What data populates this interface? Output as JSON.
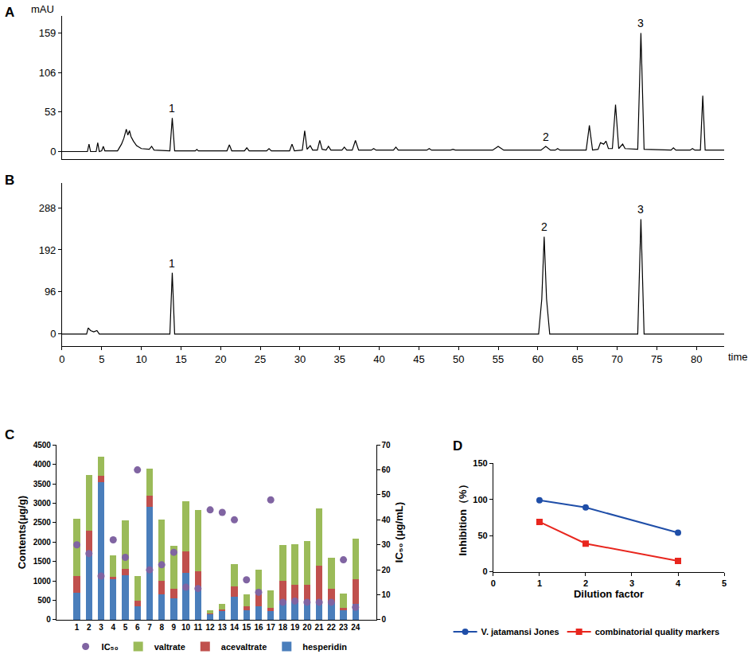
{
  "chart_data": [
    {
      "type": "line",
      "title": "A",
      "y_label": "mAU",
      "color": "#000000",
      "tick_labels": "y",
      "x": [
        0,
        3.2,
        3.4,
        3.6,
        4.3,
        4.5,
        4.7,
        5.0,
        5.2,
        5.4,
        7.0,
        7.5,
        7.8,
        8.1,
        8.3,
        8.5,
        8.7,
        9.0,
        9.4,
        10.0,
        11.0,
        11.3,
        11.6,
        13.6,
        13.9,
        14.2,
        16.8,
        17.0,
        17.2,
        20.8,
        21.1,
        21.4,
        23.0,
        23.3,
        23.6,
        25.8,
        26.1,
        26.4,
        28.7,
        29.0,
        29.3,
        30.3,
        30.6,
        30.9,
        31.3,
        31.6,
        32.2,
        32.5,
        32.8,
        33.3,
        33.6,
        33.9,
        35.3,
        35.6,
        35.9,
        36.6,
        37.0,
        37.4,
        39.0,
        39.3,
        39.6,
        41.8,
        42.1,
        42.4,
        46.0,
        46.3,
        46.6,
        49.0,
        49.3,
        49.6,
        54.3,
        55.0,
        55.7,
        60.4,
        61.0,
        61.6,
        62.2,
        62.5,
        62.8,
        66.1,
        66.5,
        66.9,
        67.6,
        67.9,
        68.3,
        68.6,
        68.9,
        69.4,
        69.8,
        70.2,
        70.7,
        71.0,
        72.6,
        73.0,
        73.4,
        76.8,
        77.1,
        77.4,
        79.2,
        79.5,
        79.8,
        80.5,
        80.8,
        81.1,
        83.5
      ],
      "values": [
        0,
        0,
        10,
        0,
        0,
        12,
        0,
        1,
        7,
        1,
        1,
        10,
        18,
        30,
        22,
        28,
        20,
        14,
        8,
        4,
        3,
        7,
        2,
        1,
        45,
        1,
        1,
        3,
        1,
        1,
        9,
        1,
        1,
        5,
        1,
        1,
        4,
        1,
        1,
        10,
        1,
        2,
        28,
        3,
        8,
        2,
        2,
        15,
        3,
        2,
        7,
        2,
        2,
        6,
        2,
        2,
        15,
        2,
        2,
        4,
        2,
        2,
        6,
        2,
        2,
        4,
        2,
        2,
        3,
        2,
        2,
        7,
        2,
        2,
        7,
        2,
        2,
        4,
        2,
        2,
        35,
        2,
        3,
        12,
        10,
        14,
        4,
        4,
        63,
        4,
        10,
        4,
        3,
        159,
        3,
        2,
        5,
        2,
        2,
        4,
        2,
        2,
        75,
        2,
        2
      ],
      "xlim": [
        0,
        83.5
      ],
      "ylim": [
        -10,
        182
      ],
      "yticks": [
        0,
        53,
        106,
        159
      ],
      "annotations": [
        {
          "text": "1",
          "x": 13.9,
          "y": 45
        },
        {
          "text": "2",
          "x": 61.0,
          "y": 7
        },
        {
          "text": "3",
          "x": 73.0,
          "y": 159
        }
      ]
    },
    {
      "type": "line",
      "title": "B",
      "x_label": "time",
      "color": "#000000",
      "x": [
        0,
        3.1,
        3.3,
        3.6,
        4.0,
        4.4,
        4.7,
        13.6,
        13.9,
        14.2,
        60.1,
        60.5,
        60.8,
        61.1,
        61.5,
        72.6,
        73.0,
        73.4,
        83.5
      ],
      "values": [
        0,
        0,
        14,
        8,
        5,
        8,
        0,
        0,
        140,
        0,
        0,
        80,
        222,
        80,
        0,
        0,
        262,
        0,
        0
      ],
      "xlim": [
        0,
        83.5
      ],
      "xticks": [
        0,
        5,
        10,
        15,
        20,
        25,
        30,
        35,
        40,
        45,
        50,
        55,
        60,
        65,
        70,
        75,
        80
      ],
      "ylim": [
        -28,
        345
      ],
      "yticks": [
        0,
        96,
        192,
        288
      ],
      "annotations": [
        {
          "text": "1",
          "x": 13.9,
          "y": 140
        },
        {
          "text": "2",
          "x": 60.8,
          "y": 222
        },
        {
          "text": "3",
          "x": 73.0,
          "y": 262
        }
      ]
    },
    {
      "type": "bar",
      "title": "C",
      "stacked": true,
      "legend": "bottom",
      "y_label": "Contents(μg/g)",
      "y2_label": "IC₅₀ (μg/mL)",
      "categories": [
        "1",
        "2",
        "3",
        "4",
        "5",
        "6",
        "7",
        "8",
        "9",
        "10",
        "11",
        "12",
        "13",
        "14",
        "15",
        "16",
        "17",
        "18",
        "19",
        "20",
        "21",
        "22",
        "23",
        "24"
      ],
      "series": [
        {
          "name": "hesperidin",
          "type": "bar",
          "color": "#4a7ebb",
          "values": [
            700,
            1650,
            3550,
            1050,
            1150,
            350,
            2900,
            650,
            550,
            1200,
            800,
            150,
            230,
            600,
            250,
            350,
            220,
            500,
            500,
            400,
            450,
            450,
            250,
            400
          ]
        },
        {
          "name": "acevaltrate",
          "type": "bar",
          "color": "#c0504d",
          "values": [
            430,
            650,
            150,
            50,
            150,
            150,
            300,
            350,
            250,
            550,
            450,
            20,
            30,
            250,
            100,
            300,
            80,
            500,
            400,
            500,
            950,
            350,
            50,
            650
          ]
        },
        {
          "name": "valtrate",
          "type": "bar",
          "color": "#9bbb59",
          "values": [
            1470,
            1420,
            500,
            550,
            1250,
            620,
            680,
            1580,
            1100,
            1300,
            1580,
            80,
            140,
            580,
            300,
            630,
            450,
            920,
            1050,
            1120,
            1470,
            800,
            380,
            1030
          ]
        },
        {
          "name": "IC₅₀",
          "type": "scatter",
          "axis": "y2",
          "marker": "circle",
          "color": "#8064a2",
          "values": [
            30,
            26.5,
            17.5,
            32,
            25,
            60,
            20,
            22,
            27,
            13,
            12.5,
            44,
            43,
            40,
            16,
            11,
            48,
            7,
            7.5,
            7,
            7,
            7,
            24,
            5
          ]
        }
      ],
      "ylim": [
        0,
        4500
      ],
      "yticks": [
        0,
        500,
        1000,
        1500,
        2000,
        2500,
        3000,
        3500,
        4000,
        4500
      ],
      "y2lim": [
        0,
        70
      ],
      "y2ticks": [
        0,
        10,
        20,
        30,
        40,
        50,
        60,
        70
      ]
    },
    {
      "type": "line",
      "title": "D",
      "legend": "bottom",
      "x_label": "Dilution factor",
      "y_label": "Inhibition（%）",
      "x": [
        1,
        2,
        4
      ],
      "series": [
        {
          "name": "V. jatamansi Jones",
          "color": "#1f4ea8",
          "marker": "circle",
          "values": [
            99,
            89,
            54
          ]
        },
        {
          "name": "combinatorial quality markers",
          "color": "#e8261e",
          "marker": "square",
          "values": [
            69,
            39,
            15
          ]
        }
      ],
      "xlim": [
        0,
        5
      ],
      "xticks": [
        0,
        1,
        2,
        3,
        4,
        5
      ],
      "ylim": [
        0,
        150
      ],
      "yticks": [
        0,
        50,
        100,
        150
      ]
    }
  ]
}
